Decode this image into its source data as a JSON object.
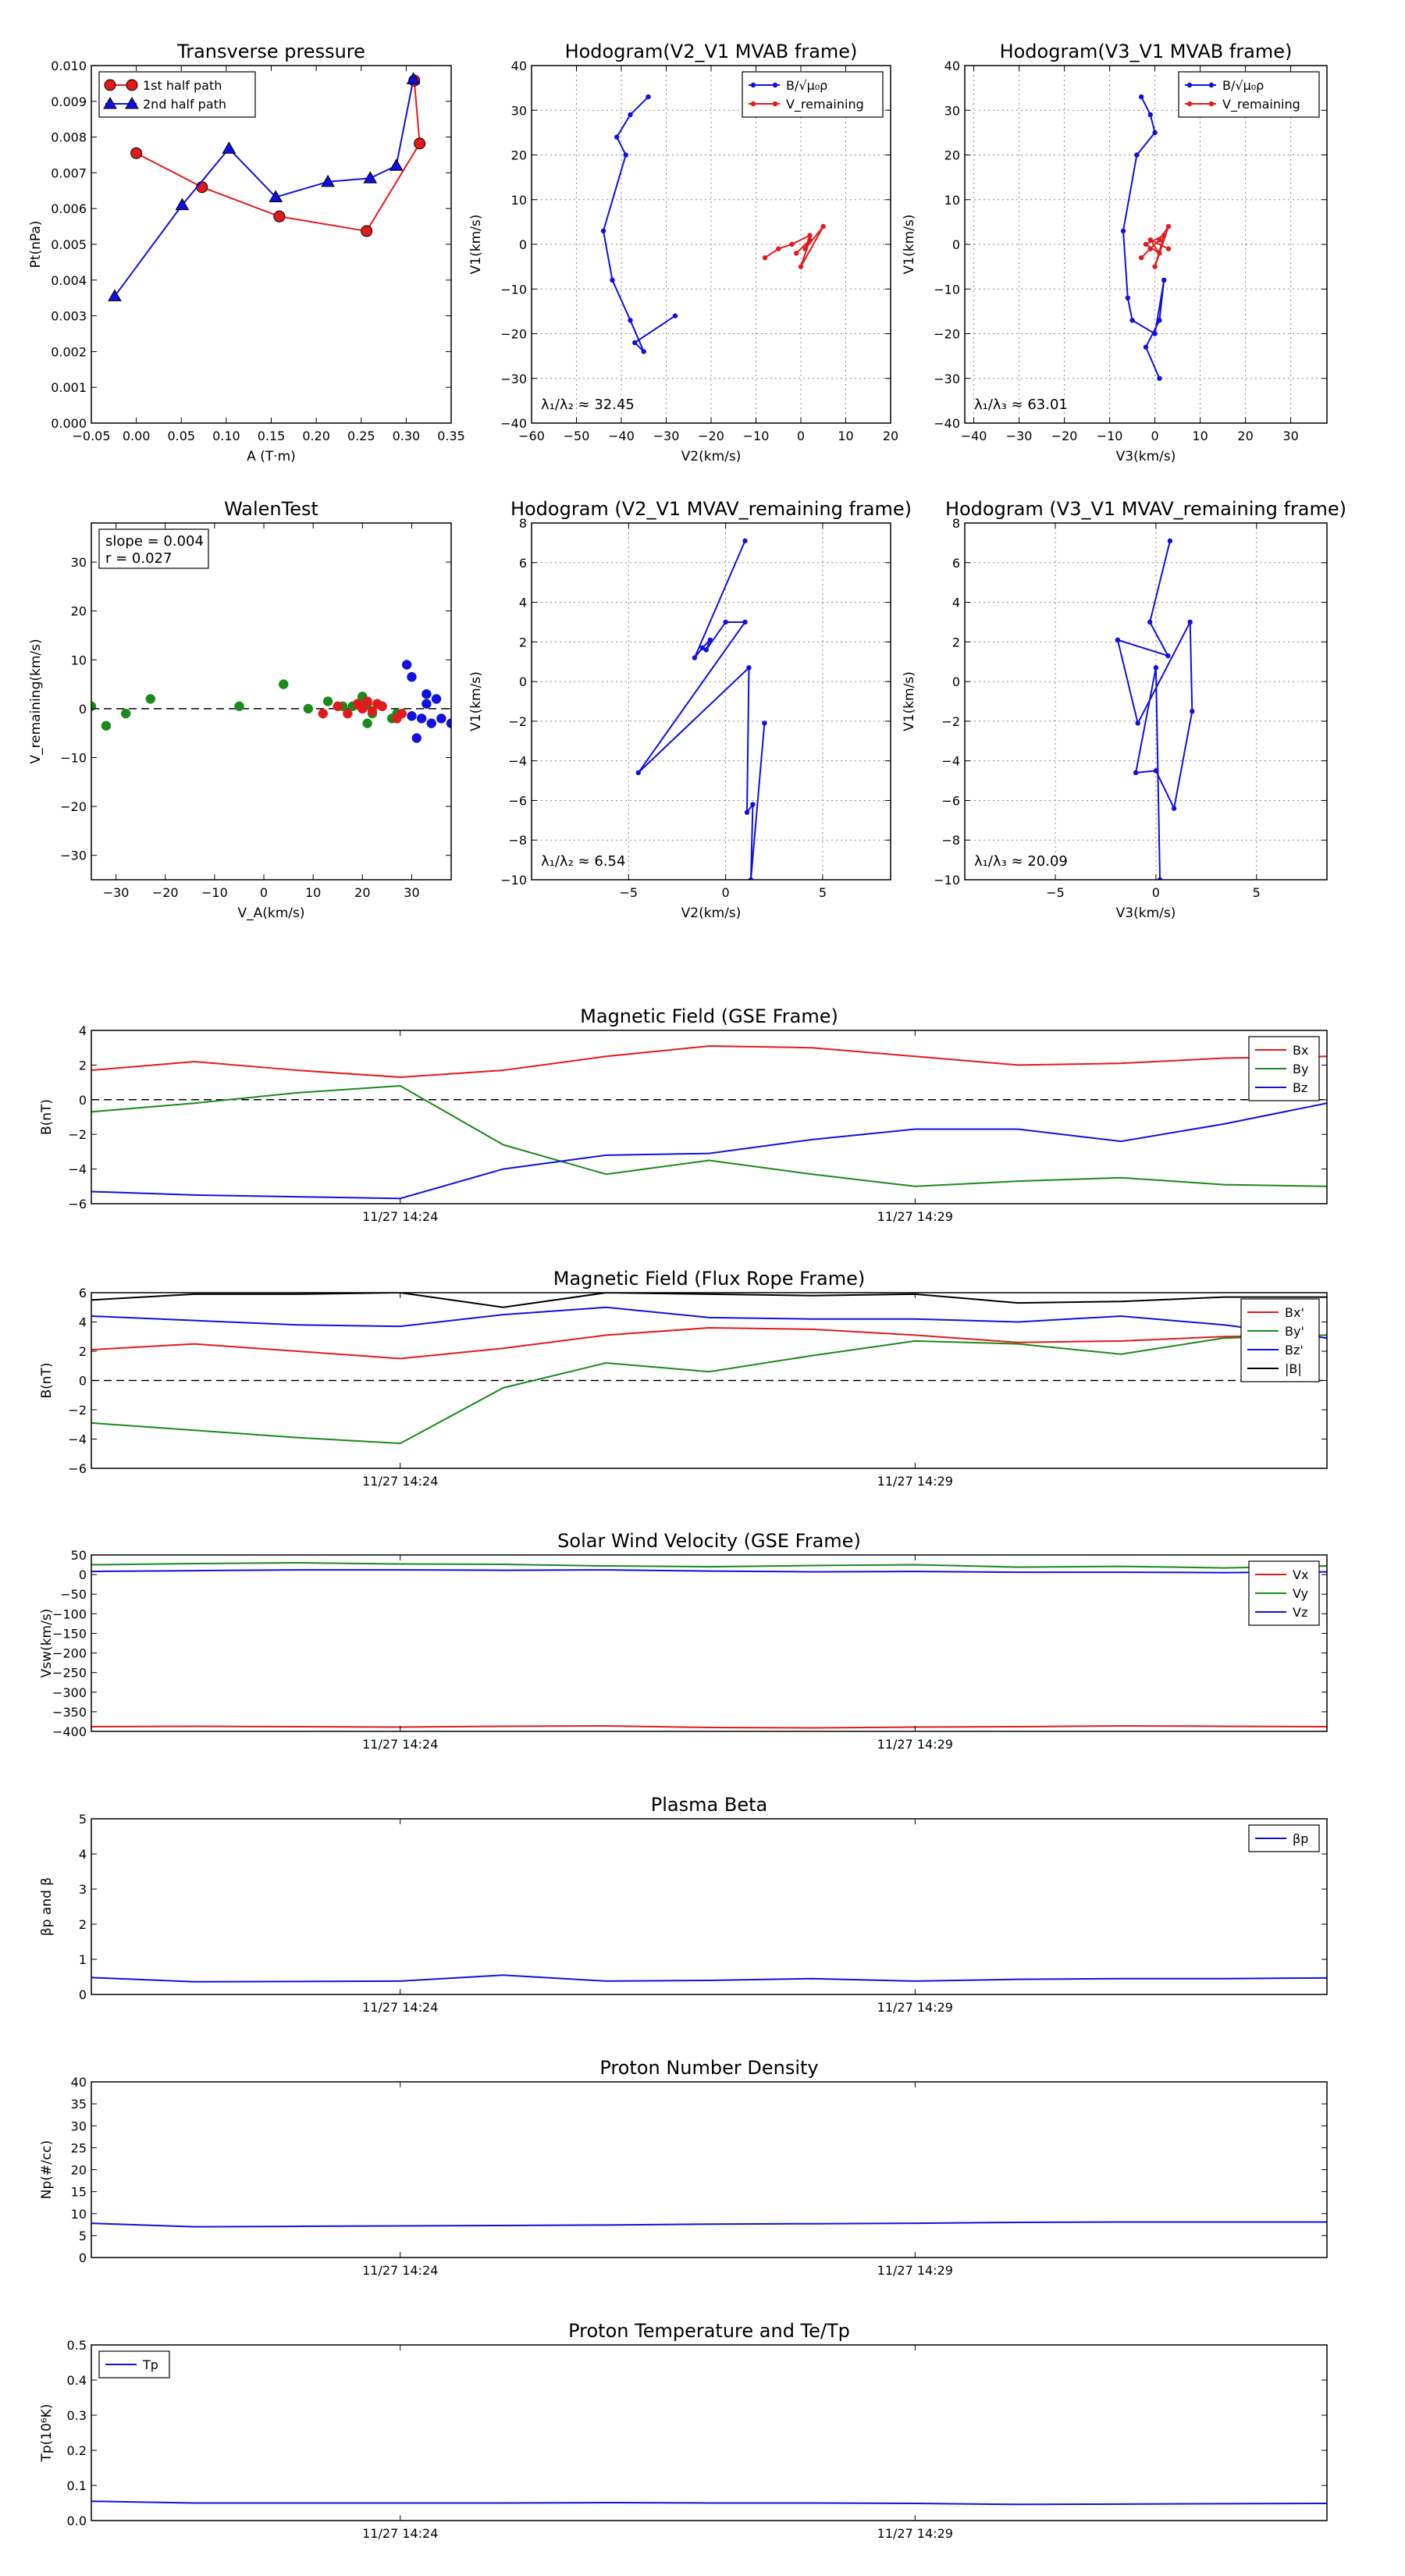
{
  "colors": {
    "red": "#e31a1c",
    "green": "#1a8a1a",
    "blue": "#1010e0",
    "black": "#000000"
  },
  "chart_data": [
    {
      "id": "transverse-pressure",
      "type": "line",
      "title": "Transverse pressure",
      "xlabel": "A (T·m)",
      "ylabel": "Pt(nPa)",
      "xlim": [
        -0.05,
        0.35
      ],
      "ylim": [
        0,
        0.01
      ],
      "xticks": [
        -0.05,
        0.0,
        0.05,
        0.1,
        0.15,
        0.2,
        0.25,
        0.3,
        0.35
      ],
      "xtick_labels": [
        "−0.05",
        "0.00",
        "0.05",
        "0.10",
        "0.15",
        "0.20",
        "0.25",
        "0.30",
        "0.35"
      ],
      "yticks": [
        0,
        0.001,
        0.002,
        0.003,
        0.004,
        0.005,
        0.006,
        0.007,
        0.008,
        0.009,
        0.01
      ],
      "ytick_labels": [
        "0.000",
        "0.001",
        "0.002",
        "0.003",
        "0.004",
        "0.005",
        "0.006",
        "0.007",
        "0.008",
        "0.009",
        "0.010"
      ],
      "grid": false,
      "legend": "top-left",
      "series": [
        {
          "name": "1st half path",
          "color": "#e31a1c",
          "marker": "circle",
          "x": [
            0.0,
            0.073,
            0.159,
            0.256,
            0.315,
            0.309
          ],
          "y": [
            0.00755,
            0.0066,
            0.00578,
            0.00537,
            0.00782,
            0.00958
          ]
        },
        {
          "name": "2nd half path",
          "color": "#1010e0",
          "marker": "triangle",
          "x": [
            0.308,
            0.289,
            0.26,
            0.213,
            0.155,
            0.103,
            0.051,
            -0.024
          ],
          "y": [
            0.00962,
            0.0072,
            0.00685,
            0.00675,
            0.00632,
            0.00768,
            0.0061,
            0.00355
          ]
        }
      ]
    },
    {
      "id": "hodogram-v2-v1-mvab",
      "type": "line",
      "title": "Hodogram(V2_V1 MVAB frame)",
      "xlabel": "V2(km/s)",
      "ylabel": "V1(km/s)",
      "xlim": [
        -60,
        20
      ],
      "ylim": [
        -40,
        40
      ],
      "xticks": [
        -60,
        -50,
        -40,
        -30,
        -20,
        -10,
        0,
        10,
        20
      ],
      "yticks": [
        -40,
        -30,
        -20,
        -10,
        0,
        10,
        20,
        30,
        40
      ],
      "grid": true,
      "legend": "top-right",
      "annotation": "λ₁/λ₂ ≈ 32.45",
      "series": [
        {
          "name": "B/√μ₀ρ",
          "color": "#1010e0",
          "marker": "dot",
          "x": [
            -34,
            -38,
            -41,
            -39,
            -44,
            -42,
            -38,
            -35,
            -37,
            -28
          ],
          "y": [
            33,
            29,
            24,
            20,
            3,
            -8,
            -17,
            -24,
            -22,
            -16
          ]
        },
        {
          "name": "V_remaining",
          "color": "#e31a1c",
          "marker": "dot",
          "x": [
            -8,
            -5,
            -2,
            2,
            1,
            5,
            0,
            2,
            -1
          ],
          "y": [
            -3,
            -1,
            0,
            2,
            -1,
            4,
            -5,
            1,
            -2
          ]
        }
      ]
    },
    {
      "id": "hodogram-v3-v1-mvab",
      "type": "line",
      "title": "Hodogram(V3_V1 MVAB frame)",
      "xlabel": "V3(km/s)",
      "ylabel": "V1(km/s)",
      "xlim": [
        -42,
        38
      ],
      "ylim": [
        -40,
        40
      ],
      "xticks": [
        -40,
        -30,
        -20,
        -10,
        0,
        10,
        20,
        30
      ],
      "yticks": [
        -40,
        -30,
        -20,
        -10,
        0,
        10,
        20,
        30,
        40
      ],
      "grid": true,
      "legend": "top-right",
      "annotation": "λ₁/λ₃ ≈ 63.01",
      "series": [
        {
          "name": "B/√μ₀ρ",
          "color": "#1010e0",
          "marker": "dot",
          "x": [
            -3,
            -1,
            0,
            -4,
            -7,
            -6,
            -5,
            0,
            2,
            1,
            -2,
            1
          ],
          "y": [
            33,
            29,
            25,
            20,
            3,
            -12,
            -17,
            -20,
            -8,
            -17,
            -23,
            -30
          ]
        },
        {
          "name": "V_remaining",
          "color": "#e31a1c",
          "marker": "dot",
          "x": [
            -3,
            -1,
            1,
            3,
            0,
            2,
            -2,
            1,
            -1,
            3
          ],
          "y": [
            -3,
            -1,
            1,
            4,
            -5,
            2,
            0,
            -2,
            1,
            -1
          ]
        }
      ]
    },
    {
      "id": "walen-test",
      "type": "scatter",
      "title": "WalenTest",
      "xlabel": "V_A(km/s)",
      "ylabel": "V_remaining(km/s)",
      "xlim": [
        -35,
        38
      ],
      "ylim": [
        -35,
        38
      ],
      "xticks": [
        -30,
        -20,
        -10,
        0,
        10,
        20,
        30
      ],
      "yticks": [
        -30,
        -20,
        -10,
        0,
        10,
        20,
        30
      ],
      "grid": false,
      "annotation": [
        "slope = 0.004",
        "r = 0.027"
      ],
      "series": [
        {
          "color": "#1a8a1a",
          "x": [
            -35,
            -32,
            -28,
            -23,
            -5,
            4,
            9,
            13,
            16,
            18,
            20,
            20,
            21,
            21,
            22,
            24,
            26,
            27
          ],
          "y": [
            0.5,
            -3.5,
            -1,
            2,
            0.5,
            5,
            0,
            1.5,
            0.5,
            0.5,
            2,
            2.5,
            1,
            -3,
            -1,
            0.5,
            -2,
            -1
          ]
        },
        {
          "color": "#e31a1c",
          "x": [
            12,
            15,
            17,
            19,
            20,
            21,
            22,
            23,
            24,
            27,
            28
          ],
          "y": [
            -1,
            0.5,
            -1,
            1,
            0,
            1.5,
            -0.5,
            1,
            0.5,
            -2,
            -1
          ]
        },
        {
          "color": "#1010e0",
          "x": [
            29,
            30,
            30,
            31,
            32,
            33,
            33,
            34,
            35,
            36,
            38
          ],
          "y": [
            9,
            6.5,
            -1.5,
            -6,
            -2,
            3,
            1,
            -3,
            2,
            -2,
            -3
          ]
        }
      ]
    },
    {
      "id": "hodogram-v2-v1-mvav",
      "type": "line",
      "title": "Hodogram (V2_V1 MVAV_remaining frame)",
      "xlabel": "V2(km/s)",
      "ylabel": "V1(km/s)",
      "xlim": [
        -10,
        8.5
      ],
      "ylim": [
        -10,
        8
      ],
      "xticks": [
        -5,
        0,
        5
      ],
      "yticks": [
        -10,
        -8,
        -6,
        -4,
        -2,
        0,
        2,
        4,
        6,
        8
      ],
      "grid": true,
      "annotation": "λ₁/λ₂ ≈ 6.54",
      "series": [
        {
          "color": "#1010e0",
          "marker": "dot",
          "x": [
            1.0,
            -1.6,
            -1.2,
            -0.8,
            -1.0,
            0.0,
            1.0,
            -4.5,
            1.2,
            1.1,
            1.4,
            1.3,
            2.0
          ],
          "y": [
            7.1,
            1.2,
            1.7,
            2.1,
            1.6,
            3.0,
            3.0,
            -4.6,
            0.7,
            -6.6,
            -6.2,
            -10.0,
            -2.1
          ]
        }
      ]
    },
    {
      "id": "hodogram-v3-v1-mvav",
      "type": "line",
      "title": "Hodogram (V3_V1 MVAV_remaining frame)",
      "xlabel": "V3(km/s)",
      "ylabel": "V1(km/s)",
      "xlim": [
        -9.5,
        8.5
      ],
      "ylim": [
        -10,
        8
      ],
      "xticks": [
        -5,
        0,
        5
      ],
      "yticks": [
        -10,
        -8,
        -6,
        -4,
        -2,
        0,
        2,
        4,
        6,
        8
      ],
      "grid": true,
      "annotation": "λ₁/λ₃ ≈ 20.09",
      "series": [
        {
          "color": "#1010e0",
          "marker": "dot",
          "x": [
            0.7,
            -0.3,
            0.6,
            -1.9,
            -0.9,
            1.7,
            1.8,
            0.9,
            0.0,
            -1.0,
            0.0,
            0.2
          ],
          "y": [
            7.1,
            3.0,
            1.3,
            2.1,
            -2.1,
            3.0,
            -1.5,
            -6.4,
            -4.5,
            -4.6,
            0.7,
            -10.0
          ]
        }
      ]
    },
    {
      "id": "b-gse",
      "type": "line",
      "title": "Magnetic Field (GSE Frame)",
      "ylabel": "B(nT)",
      "xtick_labels": [
        "11/27 14:24",
        "11/27 14:29"
      ],
      "xtick_positions": [
        3,
        8
      ],
      "x_index_range": [
        0,
        12
      ],
      "ylim": [
        -6,
        4
      ],
      "yticks": [
        -6,
        -4,
        -2,
        0,
        2,
        4
      ],
      "zero_line": true,
      "legend": "top-right",
      "series": [
        {
          "name": "Bx",
          "color": "#e31a1c",
          "values": [
            1.7,
            2.2,
            1.7,
            1.3,
            1.7,
            2.5,
            3.1,
            3.0,
            2.5,
            2.0,
            2.1,
            2.4,
            2.5
          ]
        },
        {
          "name": "By",
          "color": "#1a8a1a",
          "values": [
            -0.7,
            -0.2,
            0.4,
            0.8,
            -2.6,
            -4.3,
            -3.5,
            -4.3,
            -5.0,
            -4.7,
            -4.5,
            -4.9,
            -5.0
          ]
        },
        {
          "name": "Bz",
          "color": "#1010e0",
          "values": [
            -5.3,
            -5.5,
            -5.6,
            -5.7,
            -4.0,
            -3.2,
            -3.1,
            -2.3,
            -1.7,
            -1.7,
            -2.4,
            -1.4,
            -0.2
          ]
        }
      ]
    },
    {
      "id": "b-flux-rope",
      "type": "line",
      "title": "Magnetic Field (Flux Rope Frame)",
      "ylabel": "B(nT)",
      "xtick_labels": [
        "11/27 14:24",
        "11/27 14:29"
      ],
      "xtick_positions": [
        3,
        8
      ],
      "x_index_range": [
        0,
        12
      ],
      "ylim": [
        -6,
        6
      ],
      "yticks": [
        -6,
        -4,
        -2,
        0,
        2,
        4,
        6
      ],
      "zero_line": true,
      "legend": "top-right",
      "series": [
        {
          "name": "Bx'",
          "color": "#e31a1c",
          "values": [
            2.1,
            2.5,
            2.0,
            1.5,
            2.2,
            3.1,
            3.6,
            3.5,
            3.1,
            2.6,
            2.7,
            3.0,
            3.1
          ]
        },
        {
          "name": "By'",
          "color": "#1a8a1a",
          "values": [
            -2.9,
            -3.4,
            -3.9,
            -4.3,
            -0.5,
            1.2,
            0.6,
            1.7,
            2.7,
            2.5,
            1.8,
            2.9,
            3.1
          ]
        },
        {
          "name": "Bz'",
          "color": "#1010e0",
          "values": [
            4.4,
            4.1,
            3.8,
            3.7,
            4.5,
            5.0,
            4.3,
            4.2,
            4.2,
            4.0,
            4.4,
            3.8,
            2.9
          ]
        },
        {
          "name": "|B|",
          "color": "#000000",
          "values": [
            5.5,
            5.9,
            5.9,
            6.0,
            5.0,
            6.0,
            5.9,
            5.8,
            5.9,
            5.3,
            5.4,
            5.7,
            5.7
          ]
        }
      ]
    },
    {
      "id": "vsw-gse",
      "type": "line",
      "title": "Solar Wind Velocity (GSE Frame)",
      "ylabel": "Vsw(km/s)",
      "xtick_labels": [
        "11/27 14:24",
        "11/27 14:29"
      ],
      "xtick_positions": [
        3,
        8
      ],
      "x_index_range": [
        0,
        12
      ],
      "ylim": [
        -400,
        50
      ],
      "yticks": [
        -400,
        -350,
        -300,
        -250,
        -200,
        -150,
        -100,
        -50,
        0,
        50
      ],
      "legend": "top-right",
      "series": [
        {
          "name": "Vx",
          "color": "#e31a1c",
          "values": [
            -388,
            -387,
            -388,
            -389,
            -387,
            -386,
            -390,
            -391,
            -389,
            -388,
            -386,
            -387,
            -388
          ]
        },
        {
          "name": "Vy",
          "color": "#1a8a1a",
          "values": [
            25,
            28,
            30,
            27,
            26,
            22,
            20,
            23,
            25,
            19,
            21,
            17,
            22
          ]
        },
        {
          "name": "Vz",
          "color": "#1010e0",
          "values": [
            8,
            10,
            12,
            12,
            11,
            12,
            9,
            7,
            8,
            6,
            6,
            5,
            7
          ]
        }
      ]
    },
    {
      "id": "plasma-beta",
      "type": "line",
      "title": "Plasma Beta",
      "ylabel": "βp and β",
      "xtick_labels": [
        "11/27 14:24",
        "11/27 14:29"
      ],
      "xtick_positions": [
        3,
        8
      ],
      "x_index_range": [
        0,
        12
      ],
      "ylim": [
        0,
        5
      ],
      "yticks": [
        0,
        1,
        2,
        3,
        4,
        5
      ],
      "legend": "top-right",
      "series": [
        {
          "name": "βp",
          "color": "#1010e0",
          "values": [
            0.48,
            0.36,
            0.37,
            0.38,
            0.55,
            0.38,
            0.4,
            0.45,
            0.38,
            0.43,
            0.45,
            0.45,
            0.47
          ]
        }
      ]
    },
    {
      "id": "proton-density",
      "type": "line",
      "title": "Proton Number Density",
      "ylabel": "Np(#/cc)",
      "xtick_labels": [
        "11/27 14:24",
        "11/27 14:29"
      ],
      "xtick_positions": [
        3,
        8
      ],
      "x_index_range": [
        0,
        12
      ],
      "ylim": [
        0,
        40
      ],
      "yticks": [
        0,
        5,
        10,
        15,
        20,
        25,
        30,
        35,
        40
      ],
      "series": [
        {
          "color": "#1010e0",
          "values": [
            7.8,
            7.0,
            7.1,
            7.2,
            7.3,
            7.4,
            7.6,
            7.7,
            7.8,
            8.0,
            8.1,
            8.1,
            8.1
          ]
        }
      ]
    },
    {
      "id": "proton-temperature",
      "type": "line",
      "title": "Proton Temperature and Te/Tp",
      "ylabel": "Tp(10⁶K)",
      "xtick_labels": [
        "11/27 14:24",
        "11/27 14:29"
      ],
      "xtick_positions": [
        3,
        8
      ],
      "x_index_range": [
        0,
        12
      ],
      "ylim": [
        0,
        0.5
      ],
      "yticks": [
        0,
        0.1,
        0.2,
        0.3,
        0.4,
        0.5
      ],
      "ytick_labels": [
        "0.0",
        "0.1",
        "0.2",
        "0.3",
        "0.4",
        "0.5"
      ],
      "legend": "top-left",
      "series": [
        {
          "name": "Tp",
          "color": "#1010e0",
          "values": [
            0.055,
            0.05,
            0.05,
            0.05,
            0.05,
            0.051,
            0.05,
            0.05,
            0.049,
            0.046,
            0.047,
            0.048,
            0.049
          ]
        }
      ]
    }
  ]
}
